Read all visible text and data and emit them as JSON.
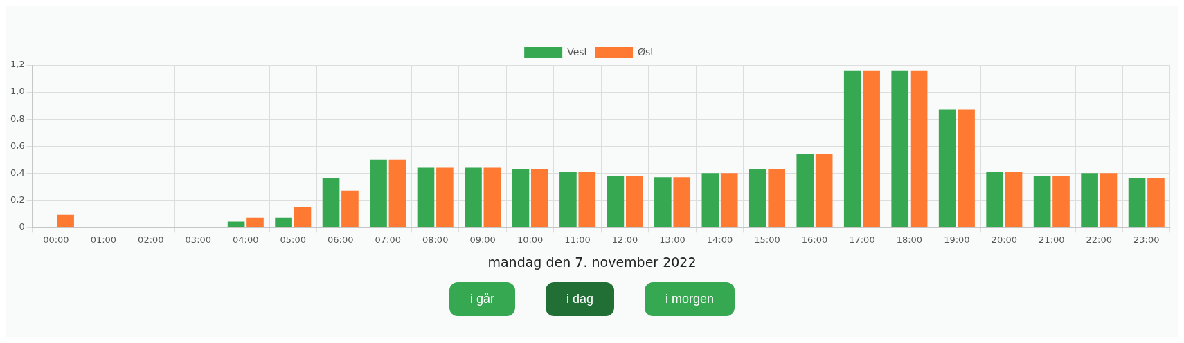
{
  "chart_data": {
    "type": "bar",
    "categories": [
      "00:00",
      "01:00",
      "02:00",
      "03:00",
      "04:00",
      "05:00",
      "06:00",
      "07:00",
      "08:00",
      "09:00",
      "10:00",
      "11:00",
      "12:00",
      "13:00",
      "14:00",
      "15:00",
      "16:00",
      "17:00",
      "18:00",
      "19:00",
      "20:00",
      "21:00",
      "22:00",
      "23:00"
    ],
    "series": [
      {
        "name": "Vest",
        "color": "#36a852",
        "values": [
          0,
          0,
          0,
          0,
          0.04,
          0.07,
          0.36,
          0.5,
          0.44,
          0.44,
          0.43,
          0.41,
          0.38,
          0.37,
          0.4,
          0.43,
          0.54,
          1.16,
          1.16,
          0.87,
          0.41,
          0.38,
          0.4,
          0.36
        ]
      },
      {
        "name": "Øst",
        "color": "#fe7a33",
        "values": [
          0.09,
          0,
          0,
          0,
          0.07,
          0.15,
          0.27,
          0.5,
          0.44,
          0.44,
          0.43,
          0.41,
          0.38,
          0.37,
          0.4,
          0.43,
          0.54,
          1.16,
          1.16,
          0.87,
          0.41,
          0.38,
          0.4,
          0.36
        ]
      }
    ],
    "ylim": [
      0,
      1.2
    ],
    "yticks": [
      0,
      {
        "value": 0.2,
        "label": "0,2"
      },
      {
        "value": 0.4,
        "label": "0,4"
      },
      {
        "value": 0.6,
        "label": "0,6"
      },
      {
        "value": 0.8,
        "label": "0,8"
      },
      {
        "value": 1,
        "label": "1,0"
      },
      {
        "value": 1.2,
        "label": "1,2"
      }
    ],
    "grid": true,
    "legend": "top",
    "annotations": [
      "mandag den 7. november 2022",
      "i går",
      "i dag",
      "i morgen"
    ]
  }
}
